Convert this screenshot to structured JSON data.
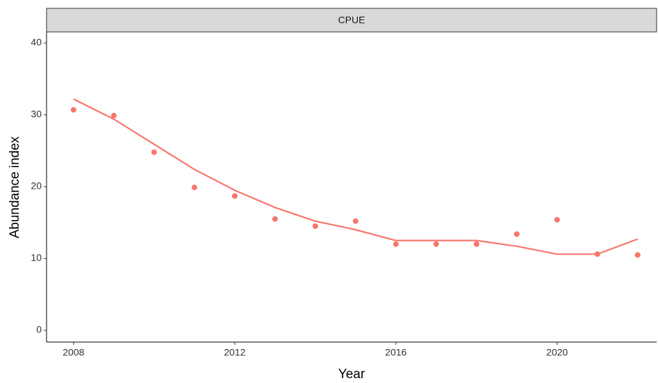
{
  "chart_data": {
    "type": "line",
    "facet_label": "CPUE",
    "x_label": "Year",
    "y_label": "Abundance index",
    "x": [
      2008,
      2009,
      2010,
      2011,
      2012,
      2013,
      2014,
      2015,
      2016,
      2017,
      2018,
      2019,
      2020,
      2021,
      2022
    ],
    "values": [
      30.7,
      29.9,
      24.8,
      19.9,
      18.7,
      15.5,
      14.5,
      15.2,
      12.0,
      12.0,
      12.0,
      13.4,
      15.4,
      10.6,
      10.5
    ],
    "smooth": [
      32.2,
      29.4,
      25.9,
      22.4,
      19.5,
      17.1,
      15.2,
      14.0,
      12.5,
      12.5,
      12.5,
      11.7,
      10.6,
      10.6,
      12.7
    ],
    "color": "#f8766d",
    "xlim": [
      2007.33,
      2022.47
    ],
    "xticks": [
      2008,
      2012,
      2016,
      2020
    ],
    "ylim": [
      -1.64,
      41.55
    ],
    "yticks": [
      0,
      10,
      20,
      30,
      40
    ]
  }
}
